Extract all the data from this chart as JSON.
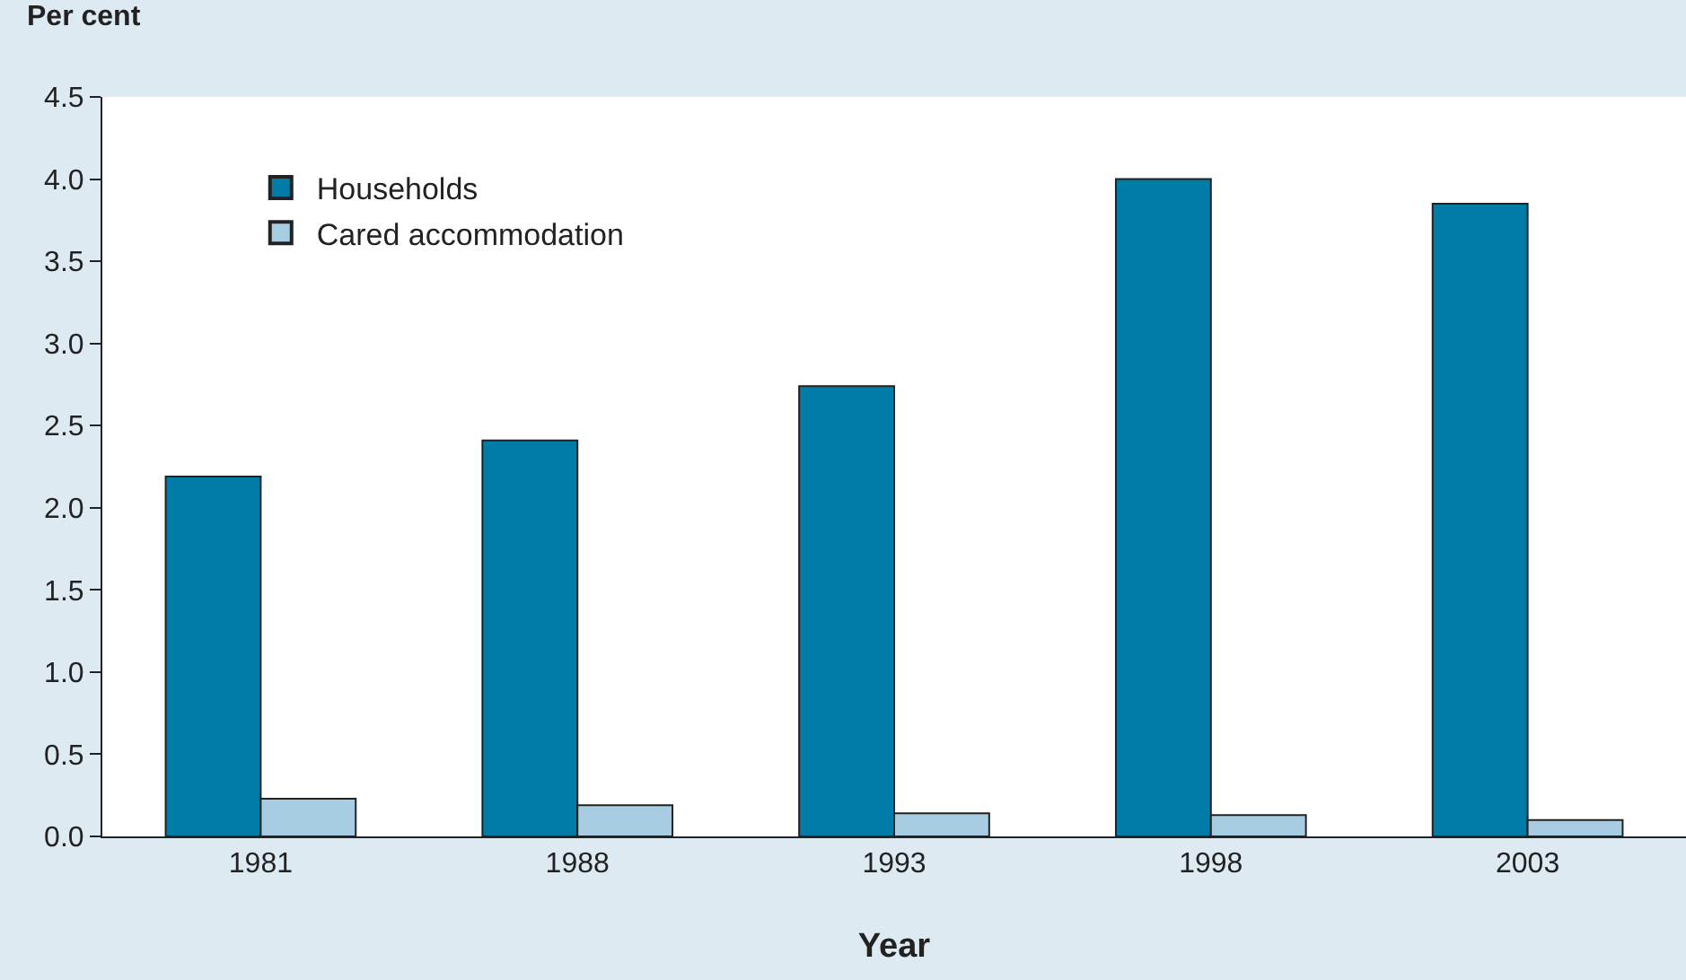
{
  "chart_data": {
    "type": "bar",
    "ylabel": "Per cent",
    "xlabel": "Year",
    "categories": [
      "1981",
      "1988",
      "1993",
      "1998",
      "2003"
    ],
    "series": [
      {
        "name": "Households",
        "color": "#007ca6",
        "values": [
          2.19,
          2.41,
          2.74,
          4.0,
          3.85
        ]
      },
      {
        "name": "Cared accommodation",
        "color": "#a8cce2",
        "values": [
          0.23,
          0.19,
          0.14,
          0.13,
          0.1
        ]
      }
    ],
    "ylim": [
      0,
      4.5
    ],
    "yticks": [
      {
        "value": 0,
        "label": "0.0"
      },
      {
        "value": 0.5,
        "label": "0.5"
      },
      {
        "value": 1,
        "label": "1.0"
      },
      {
        "value": 1.5,
        "label": "1.5"
      },
      {
        "value": 2,
        "label": "2.0"
      },
      {
        "value": 2.5,
        "label": "2.5"
      },
      {
        "value": 3,
        "label": "3.0"
      },
      {
        "value": 3.5,
        "label": "3.5"
      },
      {
        "value": 4,
        "label": "4.0"
      },
      {
        "value": 4.5,
        "label": "4.5"
      }
    ],
    "legend": "top left"
  }
}
